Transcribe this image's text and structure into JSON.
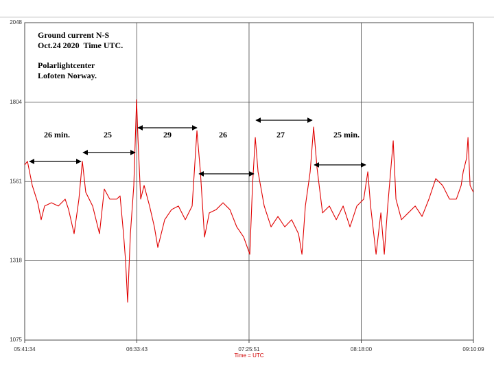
{
  "chart_data": {
    "type": "line",
    "title": "Ground current N-S",
    "subtitle": "Oct.24 2020  Time UTC.",
    "annotations": [
      "Polarlightcenter",
      "Lofoten Norway.",
      "26 min.",
      "25",
      "29",
      "26",
      "27",
      "25 min."
    ],
    "x_label": "Time = UTC",
    "xlim": [
      "05:41:34",
      "09:10:09"
    ],
    "xticks": [
      "05:41:34",
      "06:33:43",
      "07:25:51",
      "08:18:00",
      "09:10:09"
    ],
    "ylim": [
      1075,
      2048
    ],
    "yticks": [
      1075,
      1318,
      1561,
      1804,
      2048
    ],
    "grid": true,
    "series": [
      {
        "name": "Ground current N-S",
        "color": "#e00000",
        "x": [
          "05:41:34",
          "05:42:51",
          "05:45:05",
          "05:47:38",
          "05:49:13",
          "05:50:49",
          "05:54:00",
          "05:57:12",
          "06:00:23",
          "06:01:59",
          "06:04:32",
          "06:06:46",
          "06:08:22",
          "06:09:57",
          "06:13:09",
          "06:16:20",
          "06:18:34",
          "06:21:07",
          "06:24:19",
          "06:25:54",
          "06:27:30",
          "06:28:28",
          "06:29:25",
          "06:30:42",
          "06:32:17",
          "06:33:34",
          "06:34:12",
          "06:35:29",
          "06:37:04",
          "06:39:37",
          "06:41:51",
          "06:43:27",
          "06:46:39",
          "06:49:50",
          "06:53:01",
          "06:56:13",
          "06:59:24",
          "07:01:38",
          "07:03:14",
          "07:05:09",
          "07:07:23",
          "07:10:34",
          "07:13:45",
          "07:16:57",
          "07:20:08",
          "07:23:20",
          "07:26:12",
          "07:27:28",
          "07:28:45",
          "07:30:02",
          "07:32:54",
          "07:36:05",
          "07:39:17",
          "07:42:28",
          "07:45:39",
          "07:48:51",
          "07:50:27",
          "07:52:02",
          "07:54:16",
          "07:55:52",
          "07:57:28",
          "08:00:01",
          "08:03:12",
          "08:06:24",
          "08:09:35",
          "08:12:46",
          "08:15:58",
          "08:19:09",
          "08:21:04",
          "08:22:21",
          "08:24:54",
          "08:27:08",
          "08:28:43",
          "08:30:19",
          "08:32:52",
          "08:34:09",
          "08:36:42",
          "08:39:53",
          "08:43:05",
          "08:46:16",
          "08:49:27",
          "08:52:39",
          "08:55:50",
          "08:59:02",
          "09:02:13",
          "09:04:27",
          "09:05:24",
          "09:07:00",
          "09:07:38",
          "09:08:36",
          "09:10:09"
        ],
        "values": [
          1612,
          1623,
          1549,
          1496,
          1444,
          1486,
          1496,
          1486,
          1507,
          1475,
          1401,
          1507,
          1623,
          1528,
          1486,
          1401,
          1538,
          1507,
          1507,
          1517,
          1401,
          1317,
          1191,
          1401,
          1549,
          1812,
          1696,
          1507,
          1549,
          1486,
          1422,
          1359,
          1444,
          1475,
          1486,
          1444,
          1486,
          1717,
          1591,
          1391,
          1465,
          1475,
          1496,
          1475,
          1422,
          1391,
          1338,
          1549,
          1696,
          1591,
          1486,
          1422,
          1454,
          1422,
          1444,
          1401,
          1338,
          1486,
          1591,
          1728,
          1602,
          1465,
          1486,
          1444,
          1486,
          1422,
          1486,
          1507,
          1591,
          1486,
          1338,
          1465,
          1338,
          1486,
          1686,
          1507,
          1444,
          1465,
          1486,
          1454,
          1507,
          1570,
          1549,
          1507,
          1507,
          1549,
          1591,
          1633,
          1696,
          1549,
          1528
        ]
      }
    ]
  }
}
